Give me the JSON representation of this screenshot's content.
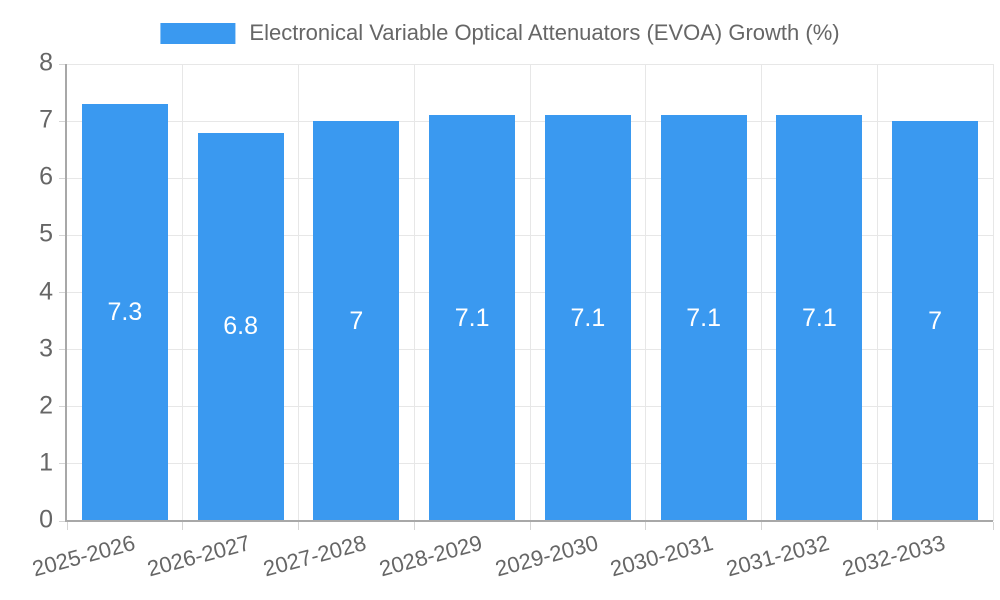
{
  "legend": {
    "label": "Electronical Variable Optical Attenuators (EVOA) Growth (%)"
  },
  "chart_data": {
    "type": "bar",
    "title": "",
    "xlabel": "",
    "ylabel": "",
    "legend_position": "top-center",
    "grid": true,
    "categories": [
      "2025-2026",
      "2026-2027",
      "2027-2028",
      "2028-2029",
      "2029-2030",
      "2030-2031",
      "2031-2032",
      "2032-2033"
    ],
    "values": [
      7.3,
      6.8,
      7,
      7.1,
      7.1,
      7.1,
      7.1,
      7
    ],
    "value_labels": [
      "7.3",
      "6.8",
      "7",
      "7.1",
      "7.1",
      "7.1",
      "7.1",
      "7"
    ],
    "series_name": "Electronical Variable Optical Attenuators (EVOA) Growth (%)",
    "ylim": [
      0,
      8
    ],
    "y_ticks": [
      0,
      1,
      2,
      3,
      4,
      5,
      6,
      7,
      8
    ],
    "colors": {
      "bar": "#3A99F0",
      "bar_label": "#ffffff",
      "text": "#666666",
      "grid": "#e7e7e7",
      "tick": "#d5d5d5",
      "axis": "#a8a8a8",
      "background": "#ffffff"
    }
  }
}
